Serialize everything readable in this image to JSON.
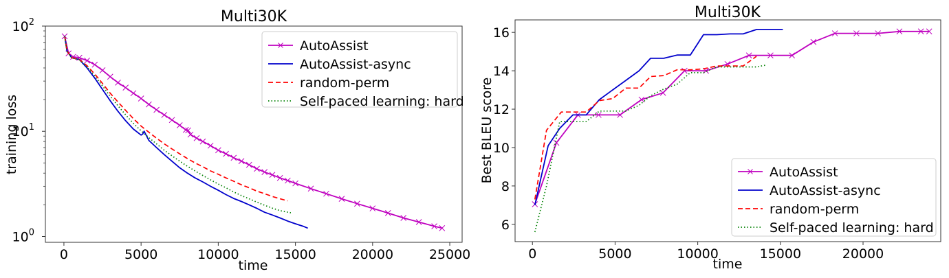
{
  "chart_data": [
    {
      "type": "line",
      "title": "Multi30K",
      "xlabel": "time",
      "ylabel": "training loss",
      "yscale": "log",
      "xlim": [
        -1200,
        25800
      ],
      "ylim": [
        0.88,
        100
      ],
      "xticks": [
        0,
        5000,
        10000,
        15000,
        20000,
        25000
      ],
      "xtick_labels": [
        "0",
        "5000",
        "10000",
        "15000",
        "20000",
        "25000"
      ],
      "yticks": [
        1,
        10,
        100
      ],
      "ytick_labels": [
        "10",
        "10",
        "10"
      ],
      "ytick_exponents": [
        "0",
        "1",
        "2"
      ],
      "grid": false,
      "legend_position": "upper right",
      "series": [
        {
          "name": "AutoAssist",
          "color": "#bf00bf",
          "style": "solid",
          "marker": "x",
          "x": [
            50,
            300,
            600,
            1000,
            1500,
            2000,
            2500,
            3000,
            3500,
            4000,
            4500,
            5000,
            5500,
            6000,
            6500,
            7000,
            7500,
            7900,
            8050,
            8200,
            8600,
            9000,
            9500,
            10000,
            10500,
            11000,
            11500,
            12000,
            12500,
            13000,
            13500,
            14000,
            14500,
            15000,
            16000,
            17000,
            18000,
            19000,
            20000,
            21000,
            22000,
            23000,
            24000,
            24500
          ],
          "y": [
            80,
            55,
            51,
            50,
            47,
            43,
            38,
            33,
            29,
            26,
            23,
            20.5,
            18,
            16,
            14.3,
            12.8,
            11.4,
            10.3,
            10.2,
            9.3,
            8.6,
            8.0,
            7.3,
            6.6,
            6.1,
            5.6,
            5.2,
            4.8,
            4.4,
            4.1,
            3.85,
            3.6,
            3.4,
            3.2,
            2.85,
            2.55,
            2.28,
            2.05,
            1.85,
            1.67,
            1.5,
            1.37,
            1.25,
            1.2
          ]
        },
        {
          "name": "AutoAssist-async",
          "color": "#0000cc",
          "style": "solid",
          "marker": "none",
          "x": [
            50,
            200,
            500,
            1000,
            1500,
            2000,
            2500,
            3000,
            3500,
            4000,
            4500,
            5000,
            5100,
            5200,
            5500,
            6000,
            6500,
            7000,
            7500,
            8000,
            8500,
            9000,
            9500,
            10000,
            10500,
            11000,
            11500,
            12000,
            12500,
            13000,
            13500,
            14000,
            14500,
            15000,
            15500,
            15800
          ],
          "y": [
            80,
            58,
            50,
            48,
            40,
            32,
            25,
            19.5,
            15.5,
            12.6,
            10.5,
            9.2,
            9.4,
            10.0,
            8.2,
            7.0,
            6.0,
            5.2,
            4.5,
            4.0,
            3.6,
            3.3,
            3.0,
            2.75,
            2.5,
            2.3,
            2.15,
            2.0,
            1.85,
            1.7,
            1.6,
            1.5,
            1.4,
            1.32,
            1.25,
            1.2
          ]
        },
        {
          "name": "random-perm",
          "color": "#ff0000",
          "style": "dashed",
          "marker": "none",
          "x": [
            50,
            200,
            500,
            1000,
            1500,
            2000,
            2500,
            3000,
            3500,
            4000,
            4500,
            5000,
            5500,
            6000,
            6500,
            7000,
            7500,
            8000,
            8500,
            9000,
            9500,
            10000,
            10500,
            11000,
            11500,
            12000,
            12500,
            13000,
            13500,
            14000,
            14500
          ],
          "y": [
            80,
            58,
            50,
            48,
            42,
            35,
            28.5,
            23,
            19,
            15.8,
            13.2,
            11.2,
            9.8,
            8.6,
            7.6,
            6.8,
            6.1,
            5.5,
            5.0,
            4.6,
            4.2,
            3.9,
            3.6,
            3.35,
            3.1,
            2.9,
            2.7,
            2.55,
            2.4,
            2.28,
            2.18
          ]
        },
        {
          "name": "Self-paced learning: hard",
          "color": "#008000",
          "style": "dotted",
          "marker": "none",
          "x": [
            50,
            200,
            500,
            1000,
            1500,
            2000,
            2500,
            3000,
            3500,
            4000,
            4500,
            5000,
            5500,
            6000,
            6500,
            7000,
            7500,
            8000,
            8500,
            9000,
            9500,
            10000,
            10500,
            11000,
            11500,
            12000,
            12500,
            13000,
            13500,
            14000,
            14700
          ],
          "y": [
            80,
            58,
            50,
            48,
            41,
            33.5,
            27,
            21.5,
            17.5,
            14.3,
            11.9,
            10.1,
            8.7,
            7.6,
            6.6,
            5.85,
            5.2,
            4.65,
            4.2,
            3.8,
            3.45,
            3.15,
            2.9,
            2.65,
            2.45,
            2.28,
            2.12,
            1.98,
            1.86,
            1.76,
            1.68
          ]
        }
      ]
    },
    {
      "type": "line",
      "title": "Multi30K",
      "xlabel": "time",
      "ylabel": "Best BLEU score",
      "yscale": "linear",
      "xlim": [
        -1050,
        24700
      ],
      "ylim": [
        5.1,
        16.65
      ],
      "xticks": [
        0,
        5000,
        10000,
        15000,
        20000
      ],
      "xtick_labels": [
        "0",
        "5000",
        "10000",
        "15000",
        "20000"
      ],
      "yticks": [
        6,
        8,
        10,
        12,
        14,
        16
      ],
      "ytick_labels": [
        "6",
        "8",
        "10",
        "12",
        "14",
        "16"
      ],
      "grid": false,
      "legend_position": "lower right",
      "series": [
        {
          "name": "AutoAssist",
          "color": "#bf00bf",
          "style": "solid",
          "marker": "x",
          "x": [
            150,
            1450,
            2750,
            4000,
            5300,
            6600,
            7900,
            9200,
            10500,
            11800,
            13100,
            14400,
            15700,
            17000,
            18300,
            19600,
            20900,
            22200,
            23500,
            24000
          ],
          "y": [
            7.05,
            10.25,
            11.7,
            11.7,
            11.7,
            12.5,
            12.85,
            14.0,
            14.0,
            14.35,
            14.8,
            14.8,
            14.8,
            15.5,
            15.95,
            15.95,
            15.95,
            16.05,
            16.05,
            16.05
          ]
        },
        {
          "name": "AutoAssist-async",
          "color": "#0000cc",
          "style": "solid",
          "marker": "none",
          "x": [
            150,
            950,
            1650,
            2450,
            3250,
            4050,
            4850,
            5650,
            6450,
            7150,
            7950,
            8750,
            9550,
            10350,
            11150,
            11950,
            12750,
            13550,
            14350,
            15150
          ],
          "y": [
            7.0,
            10.1,
            11.0,
            11.7,
            11.7,
            12.5,
            13.0,
            13.5,
            14.0,
            14.65,
            14.65,
            14.82,
            14.82,
            15.88,
            15.88,
            15.92,
            15.92,
            16.15,
            16.15,
            16.15
          ]
        },
        {
          "name": "random-perm",
          "color": "#ff0000",
          "style": "dashed",
          "marker": "none",
          "x": [
            150,
            850,
            1750,
            2450,
            3250,
            4050,
            4850,
            5650,
            6450,
            7150,
            7950,
            8750,
            9550,
            10350,
            11150,
            11950,
            12750,
            13550
          ],
          "y": [
            7.3,
            10.9,
            11.85,
            11.85,
            11.85,
            12.45,
            12.55,
            13.1,
            13.1,
            13.7,
            13.75,
            14.05,
            14.05,
            14.1,
            14.25,
            14.25,
            14.25,
            14.75
          ]
        },
        {
          "name": "Self-paced learning: hard",
          "color": "#008000",
          "style": "dotted",
          "marker": "none",
          "x": [
            150,
            850,
            1650,
            2450,
            3250,
            4050,
            4850,
            5650,
            6450,
            7150,
            7950,
            8750,
            9550,
            10350,
            11150,
            11950,
            12750,
            13550,
            14150
          ],
          "y": [
            5.6,
            8.0,
            11.35,
            11.35,
            11.35,
            11.9,
            11.9,
            11.9,
            12.2,
            12.7,
            13.05,
            13.3,
            13.9,
            13.9,
            14.2,
            14.2,
            14.2,
            14.2,
            14.3
          ]
        }
      ]
    }
  ]
}
